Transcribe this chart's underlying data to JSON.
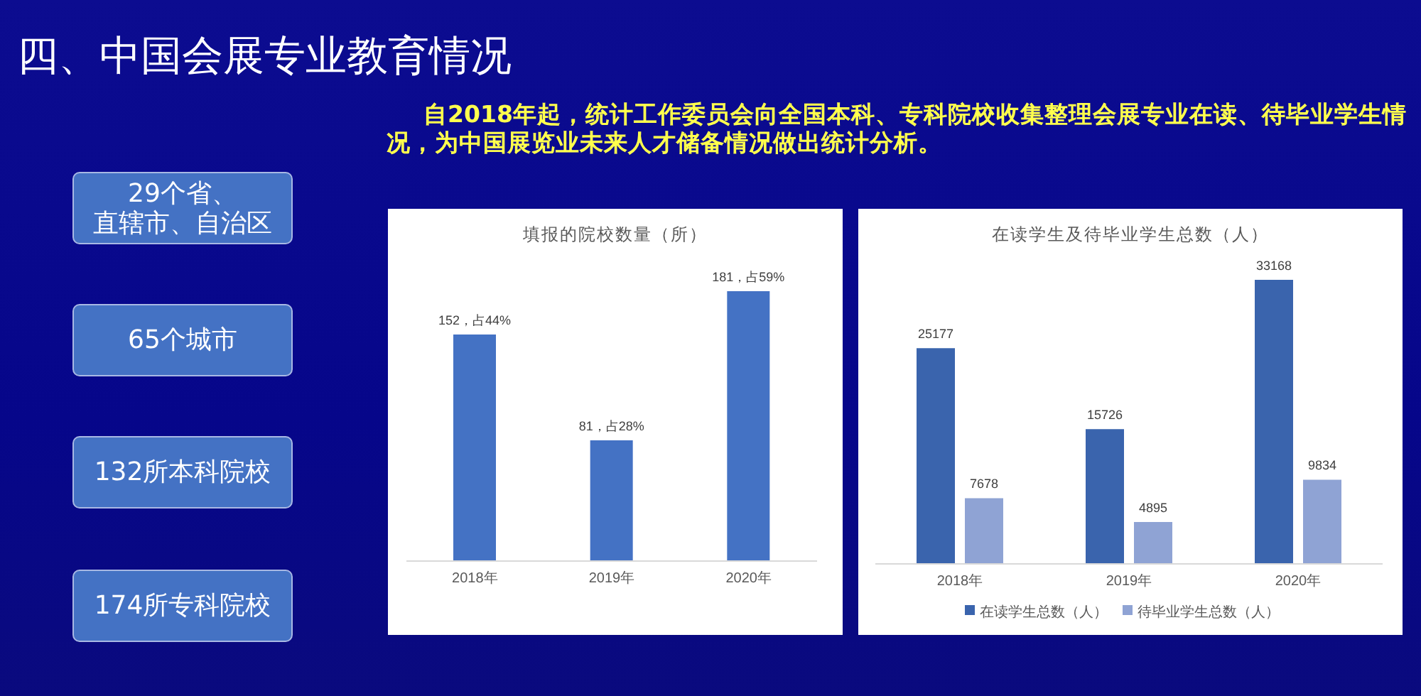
{
  "chart_data": [
    {
      "type": "other",
      "title": "四、中国会展专业教育情况",
      "subtitle": "自2018年起，统计工作委员会向全国本科、专科院校收集整理会展专业在读、待毕业学生情况，为中国展览业未来人才储备情况做出统计分析。",
      "annotations": [
        "29个省、直辖市、自治区",
        "65个城市",
        "132所本科院校",
        "174所专科院校"
      ]
    },
    {
      "type": "bar",
      "title": "填报的院校数量（所）",
      "categories": [
        "2018年",
        "2019年",
        "2020年"
      ],
      "values": [
        152,
        81,
        181
      ],
      "color": "#4472c4",
      "value_labels": [
        "152，占44%",
        "81，占28%",
        "181，占59%"
      ]
    },
    {
      "type": "bar",
      "title": "在读学生及待毕业学生总数（人）",
      "categories": [
        "2018年",
        "2019年",
        "2020年"
      ],
      "series": [
        {
          "name": "在读学生总数（人）",
          "color": "#3a64ad",
          "values": [
            25177,
            15726,
            33168
          ]
        },
        {
          "name": "待毕业学生总数（人）",
          "color": "#8fa3d4",
          "values": [
            7678,
            4895,
            9834
          ]
        }
      ],
      "data_labels": true,
      "legend": "bottom"
    }
  ]
}
